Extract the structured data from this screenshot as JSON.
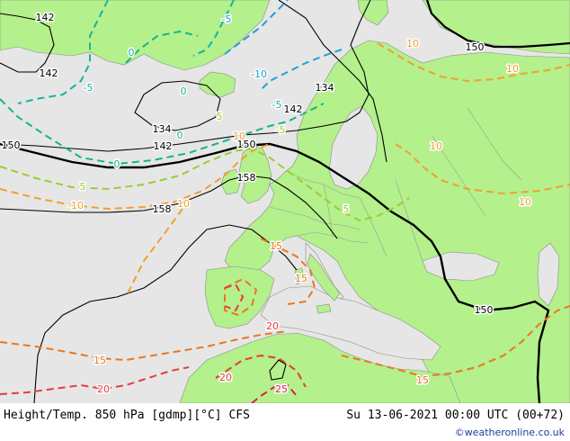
{
  "colors": {
    "sea": "#e6e6e6",
    "land": "#b4f08c",
    "border": "#9a9a9a",
    "height_contour": "#000000",
    "temp_neg10": "#1ea0d6",
    "temp_neg5": "#14b4a0",
    "temp_0": "#14b48c",
    "temp_5": "#9acd32",
    "temp_10": "#f0a030",
    "temp_15": "#e8781e",
    "temp_20": "#e63c3c",
    "temp_25": "#d81e50",
    "credit": "#1a3d99"
  },
  "height_labels": [
    "142",
    "142",
    "134",
    "142",
    "142",
    "134",
    "150",
    "150",
    "158",
    "158",
    "150",
    "150"
  ],
  "temp_labels": {
    "neg10": [
      "-10",
      "-5"
    ],
    "neg5": [
      "-5",
      "-5"
    ],
    "zero": [
      "0",
      "0",
      "0",
      "0"
    ],
    "five": [
      "5",
      "5",
      "5",
      "-5"
    ],
    "ten": [
      "-10",
      "10",
      "10",
      "10",
      "10",
      "10",
      "10"
    ],
    "fifteen": [
      "15",
      "15",
      "15",
      "15"
    ],
    "twenty": [
      "20",
      "20",
      "20"
    ],
    "twentyfive": [
      "25"
    ]
  },
  "footer": {
    "product_title": "Height/Temp. 850 hPa [gdmp][°C] CFS",
    "valid_time": "Su 13-06-2021 00:00 UTC (00+72)",
    "credit": "©weatheronline.co.uk"
  }
}
